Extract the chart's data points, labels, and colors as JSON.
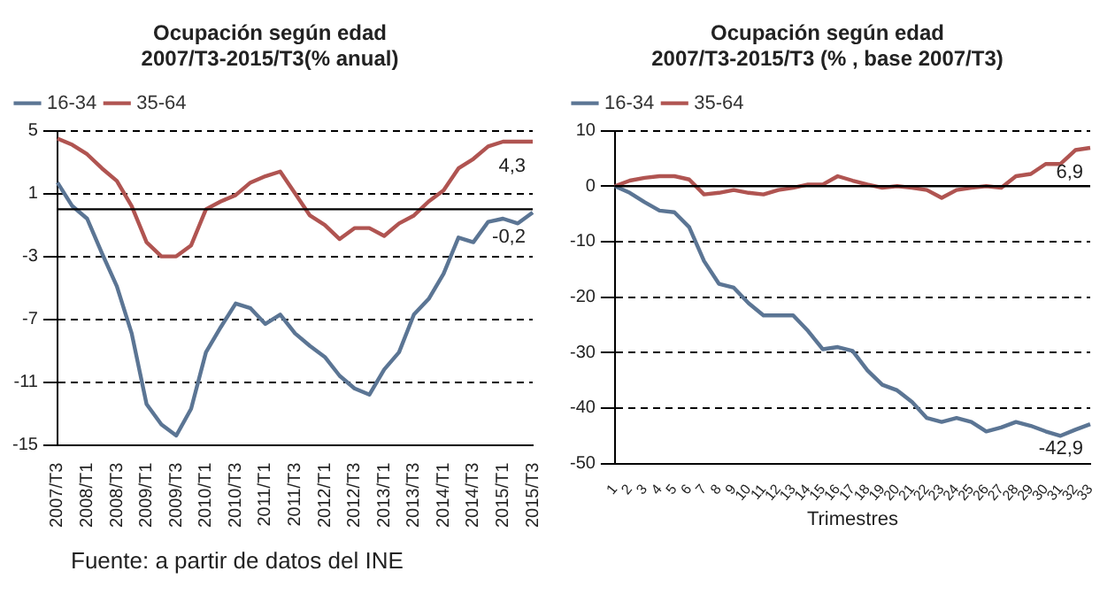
{
  "chart_data": [
    {
      "type": "line",
      "title": "Ocupación según edad",
      "subtitle": "2007/T3-2015/T3(% anual)",
      "categories": [
        "2007/T3",
        null,
        "2008/T1",
        null,
        "2008/T3",
        null,
        "2009/T1",
        null,
        "2009/T3",
        null,
        "2010/T1",
        null,
        "2010/T3",
        null,
        "2011/T1",
        null,
        "2011/T3",
        null,
        "2012/T1",
        null,
        "2012/T3",
        null,
        "2013/T1",
        null,
        "2013/T3",
        null,
        "2014/T1",
        null,
        "2014/T3",
        null,
        "2015/T1",
        null,
        "2015/T3"
      ],
      "series": [
        {
          "name": "16-34",
          "color": "#5b7594",
          "values": [
            1.7,
            0.2,
            -0.6,
            -2.8,
            -4.9,
            -7.9,
            -12.4,
            -13.7,
            -14.4,
            -12.7,
            -9.1,
            -7.5,
            -6.0,
            -6.3,
            -7.3,
            -6.7,
            -7.9,
            -8.7,
            -9.4,
            -10.6,
            -11.4,
            -11.8,
            -10.2,
            -9.1,
            -6.7,
            -5.7,
            -4.1,
            -1.8,
            -2.1,
            -0.8,
            -0.6,
            -0.9,
            -0.2
          ]
        },
        {
          "name": "35-64",
          "color": "#b05451",
          "values": [
            4.5,
            4.1,
            3.5,
            2.6,
            1.8,
            0.2,
            -2.1,
            -3.0,
            -3.0,
            -2.3,
            0.0,
            0.5,
            0.9,
            1.7,
            2.1,
            2.4,
            1.0,
            -0.4,
            -1.0,
            -1.9,
            -1.2,
            -1.2,
            -1.7,
            -0.9,
            -0.4,
            0.5,
            1.2,
            2.6,
            3.2,
            4.0,
            4.3,
            4.3,
            4.3
          ]
        }
      ],
      "ylim": [
        -15,
        5
      ],
      "yticks": [
        -15,
        -11,
        -7,
        -3,
        1,
        5
      ],
      "grid": "y",
      "legend": "top left",
      "marker": "none",
      "ref_lines": [
        {
          "axis": "y",
          "value": 0,
          "color": "#000000"
        }
      ],
      "annotations": [
        {
          "text": "4,3",
          "x": "2015/T3",
          "y": 4.3
        },
        {
          "text": "-0,2",
          "x": "2015/T3",
          "y": -0.2
        },
        "Fuente: a partir de datos del INE"
      ]
    },
    {
      "type": "line",
      "title": "Ocupación según edad",
      "subtitle": "2007/T3-2015/T3 (% , base 2007/T3)",
      "xlabel": "Trimestres",
      "categories": [
        "1",
        "2",
        "3",
        "4",
        "5",
        "6",
        "7",
        "8",
        "9",
        "10",
        "11",
        "12",
        "13",
        "14",
        "15",
        "16",
        "17",
        "18",
        "19",
        "20",
        "21",
        "22",
        "23",
        "24",
        "25",
        "26",
        "27",
        "28",
        "29",
        "30",
        "31",
        "32",
        "33"
      ],
      "series": [
        {
          "name": "16-34",
          "color": "#5b7594",
          "values": [
            0,
            -1.2,
            -2.9,
            -4.4,
            -4.7,
            -7.4,
            -13.5,
            -17.6,
            -18.3,
            -21.1,
            -23.3,
            -23.3,
            -23.3,
            -26.1,
            -29.4,
            -29.0,
            -29.7,
            -33.2,
            -35.8,
            -36.8,
            -38.9,
            -41.8,
            -42.5,
            -41.8,
            -42.5,
            -44.2,
            -43.5,
            -42.5,
            -43.2,
            -44.2,
            -45.0,
            -43.9,
            -42.9
          ]
        },
        {
          "name": "35-64",
          "color": "#b05451",
          "values": [
            0,
            1.0,
            1.5,
            1.8,
            1.8,
            1.2,
            -1.5,
            -1.2,
            -0.7,
            -1.2,
            -1.5,
            -0.7,
            -0.3,
            0.3,
            0.3,
            1.8,
            1.0,
            0.3,
            -0.3,
            0,
            -0.3,
            -0.7,
            -2.1,
            -0.7,
            -0.3,
            0,
            -0.3,
            1.8,
            2.2,
            4.0,
            4.0,
            6.5,
            6.9
          ]
        }
      ],
      "ylim": [
        -50,
        10
      ],
      "yticks": [
        -50,
        -40,
        -30,
        -20,
        -10,
        0,
        10
      ],
      "grid": "y",
      "legend": "top left",
      "marker": "none",
      "ref_lines": [
        {
          "axis": "y",
          "value": 0,
          "color": "#000000"
        }
      ],
      "annotations": [
        {
          "text": "6,9",
          "x": "33",
          "y": 6.9
        },
        {
          "text": "-42,9",
          "x": "33",
          "y": -42.9
        }
      ]
    }
  ]
}
